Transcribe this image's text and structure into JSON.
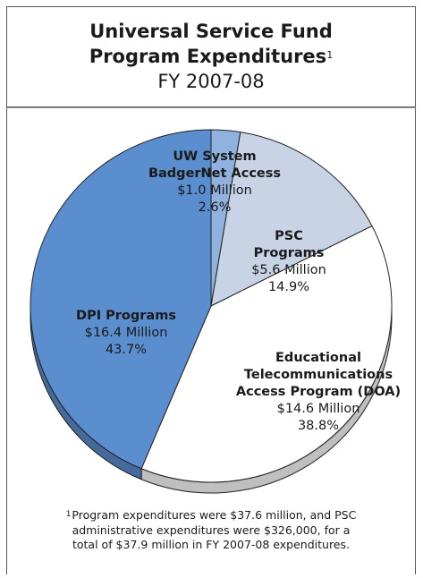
{
  "header": {
    "title_line1": "Universal Service Fund",
    "title_line2": "Program Expenditures",
    "title_sup": "1",
    "subtitle": "FY 2007-08"
  },
  "chart_data": {
    "type": "pie",
    "title": "Universal Service Fund Program Expenditures",
    "subtitle": "FY 2007-08",
    "slices": [
      {
        "name_lines": [
          "UW System",
          "BadgerNet Access"
        ],
        "amount": "$1.0 Million",
        "percent_label": "2.6%",
        "value": 2.6,
        "color": "#8fb2de"
      },
      {
        "name_lines": [
          "PSC",
          "Programs"
        ],
        "amount": "$5.6 Million",
        "percent_label": "14.9%",
        "value": 14.9,
        "color": "#c8d4e6"
      },
      {
        "name_lines": [
          "Educational",
          "Telecommunications",
          "Access Program (DOA)"
        ],
        "amount": "$14.6 Million",
        "percent_label": "38.8%",
        "value": 38.8,
        "color": "#ffffff"
      },
      {
        "name_lines": [
          "DPI Programs"
        ],
        "amount": "$16.4 Million",
        "percent_label": "43.7%",
        "value": 43.7,
        "color": "#5b8ecf"
      }
    ]
  },
  "footnote": {
    "marker": "1",
    "line1": "Program expenditures were $37.6 million, and PSC",
    "line2": "administrative expenditures were $326,000, for a",
    "line3": "total of $37.9 million in FY 2007-08 expenditures."
  }
}
